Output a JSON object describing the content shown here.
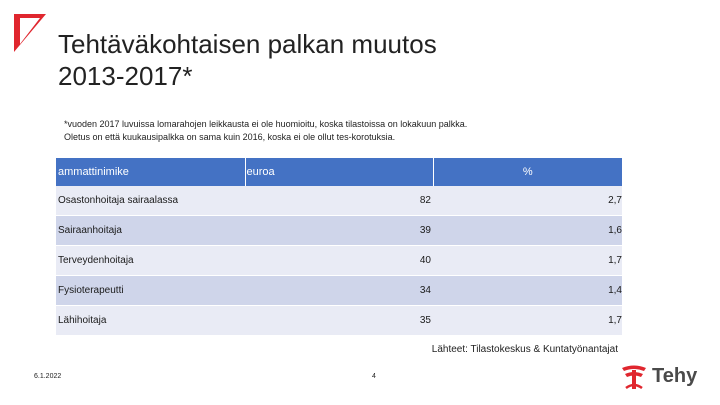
{
  "slide": {
    "title_line1": "Tehtäväkohtaisen palkan muutos",
    "title_line2": "2013-2017*",
    "footnote_line1": "*vuoden 2017 luvuissa lomarahojen leikkausta ei ole huomioitu, koska tilastoissa on lokakuun palkka.",
    "footnote_line2": "Oletus on että kuukausipalkka on sama kuin 2016, koska ei ole ollut tes-korotuksia.",
    "source": "Lähteet: Tilastokeskus & Kuntatyönantajat",
    "date": "6.1.2022",
    "page_number": "4",
    "logo_text": "Tehy"
  },
  "table": {
    "headers": [
      "ammattinimike",
      "euroa",
      "%"
    ],
    "rows": [
      {
        "title": "Osastonhoitaja sairaalassa",
        "euro": "82",
        "pct": "2,7"
      },
      {
        "title": "Sairaanhoitaja",
        "euro": "39",
        "pct": "1,6"
      },
      {
        "title": "Terveydenhoitaja",
        "euro": "40",
        "pct": "1,7"
      },
      {
        "title": "Fysioterapeutti",
        "euro": "34",
        "pct": "1,4"
      },
      {
        "title": "Lähihoitaja",
        "euro": "35",
        "pct": "1,7"
      }
    ]
  },
  "colors": {
    "header_bg": "#4472c4",
    "row_light": "#e9ebf5",
    "row_dark": "#cfd5ea",
    "brand_red": "#e0262e"
  },
  "icons": [
    "corner-mark-icon",
    "tehy-logo-icon"
  ]
}
